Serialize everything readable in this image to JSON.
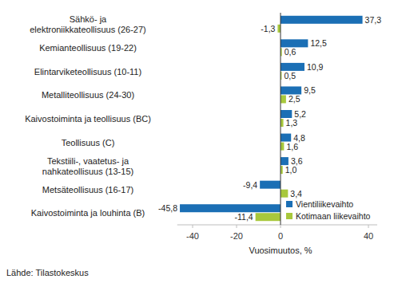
{
  "chart_data": {
    "type": "bar",
    "orientation": "horizontal",
    "categories": [
      "Sähkö- ja\nelektroniikkateollisuus (26-27)",
      "Kemianteollisuus (19-22)",
      "Elintarviketeollisuus (10-11)",
      "Metalliteollisuus (24-30)",
      "Kaivostoiminta ja teollisuus (BC)",
      "Teollisuus (C)",
      "Tekstiili-, vaatetus- ja\nnahkateollisuus (13-15)",
      "Metsäteollisuus (16-17)",
      "Kaivostoiminta ja louhinta (B)"
    ],
    "series": [
      {
        "name": "Vientiliikevaihto",
        "color": "#1b6fb5",
        "values": [
          37.3,
          12.5,
          10.9,
          9.5,
          5.2,
          4.8,
          3.6,
          -9.4,
          -45.8
        ],
        "value_labels": [
          "37,3",
          "12,5",
          "10,9",
          "9,5",
          "5,2",
          "4,8",
          "3,6",
          "-9,4",
          "-45,8"
        ]
      },
      {
        "name": "Kotimaan liikevaihto",
        "color": "#a8c83c",
        "values": [
          -1.3,
          0.6,
          0.5,
          2.5,
          1.3,
          1.6,
          1.0,
          3.4,
          -11.4
        ],
        "value_labels": [
          "-1,3",
          "0,6",
          "0,5",
          "2,5",
          "1,3",
          "1,6",
          "1,0",
          "3,4",
          "-11,4"
        ]
      }
    ],
    "x_label": "Vuosimuutos, %",
    "source": "Lähde: Tilastokeskus",
    "xlim": [
      -47,
      44
    ],
    "xticks": [
      -40,
      -20,
      0,
      40
    ],
    "grid": false,
    "legend": "lower right",
    "data_labels": true
  }
}
